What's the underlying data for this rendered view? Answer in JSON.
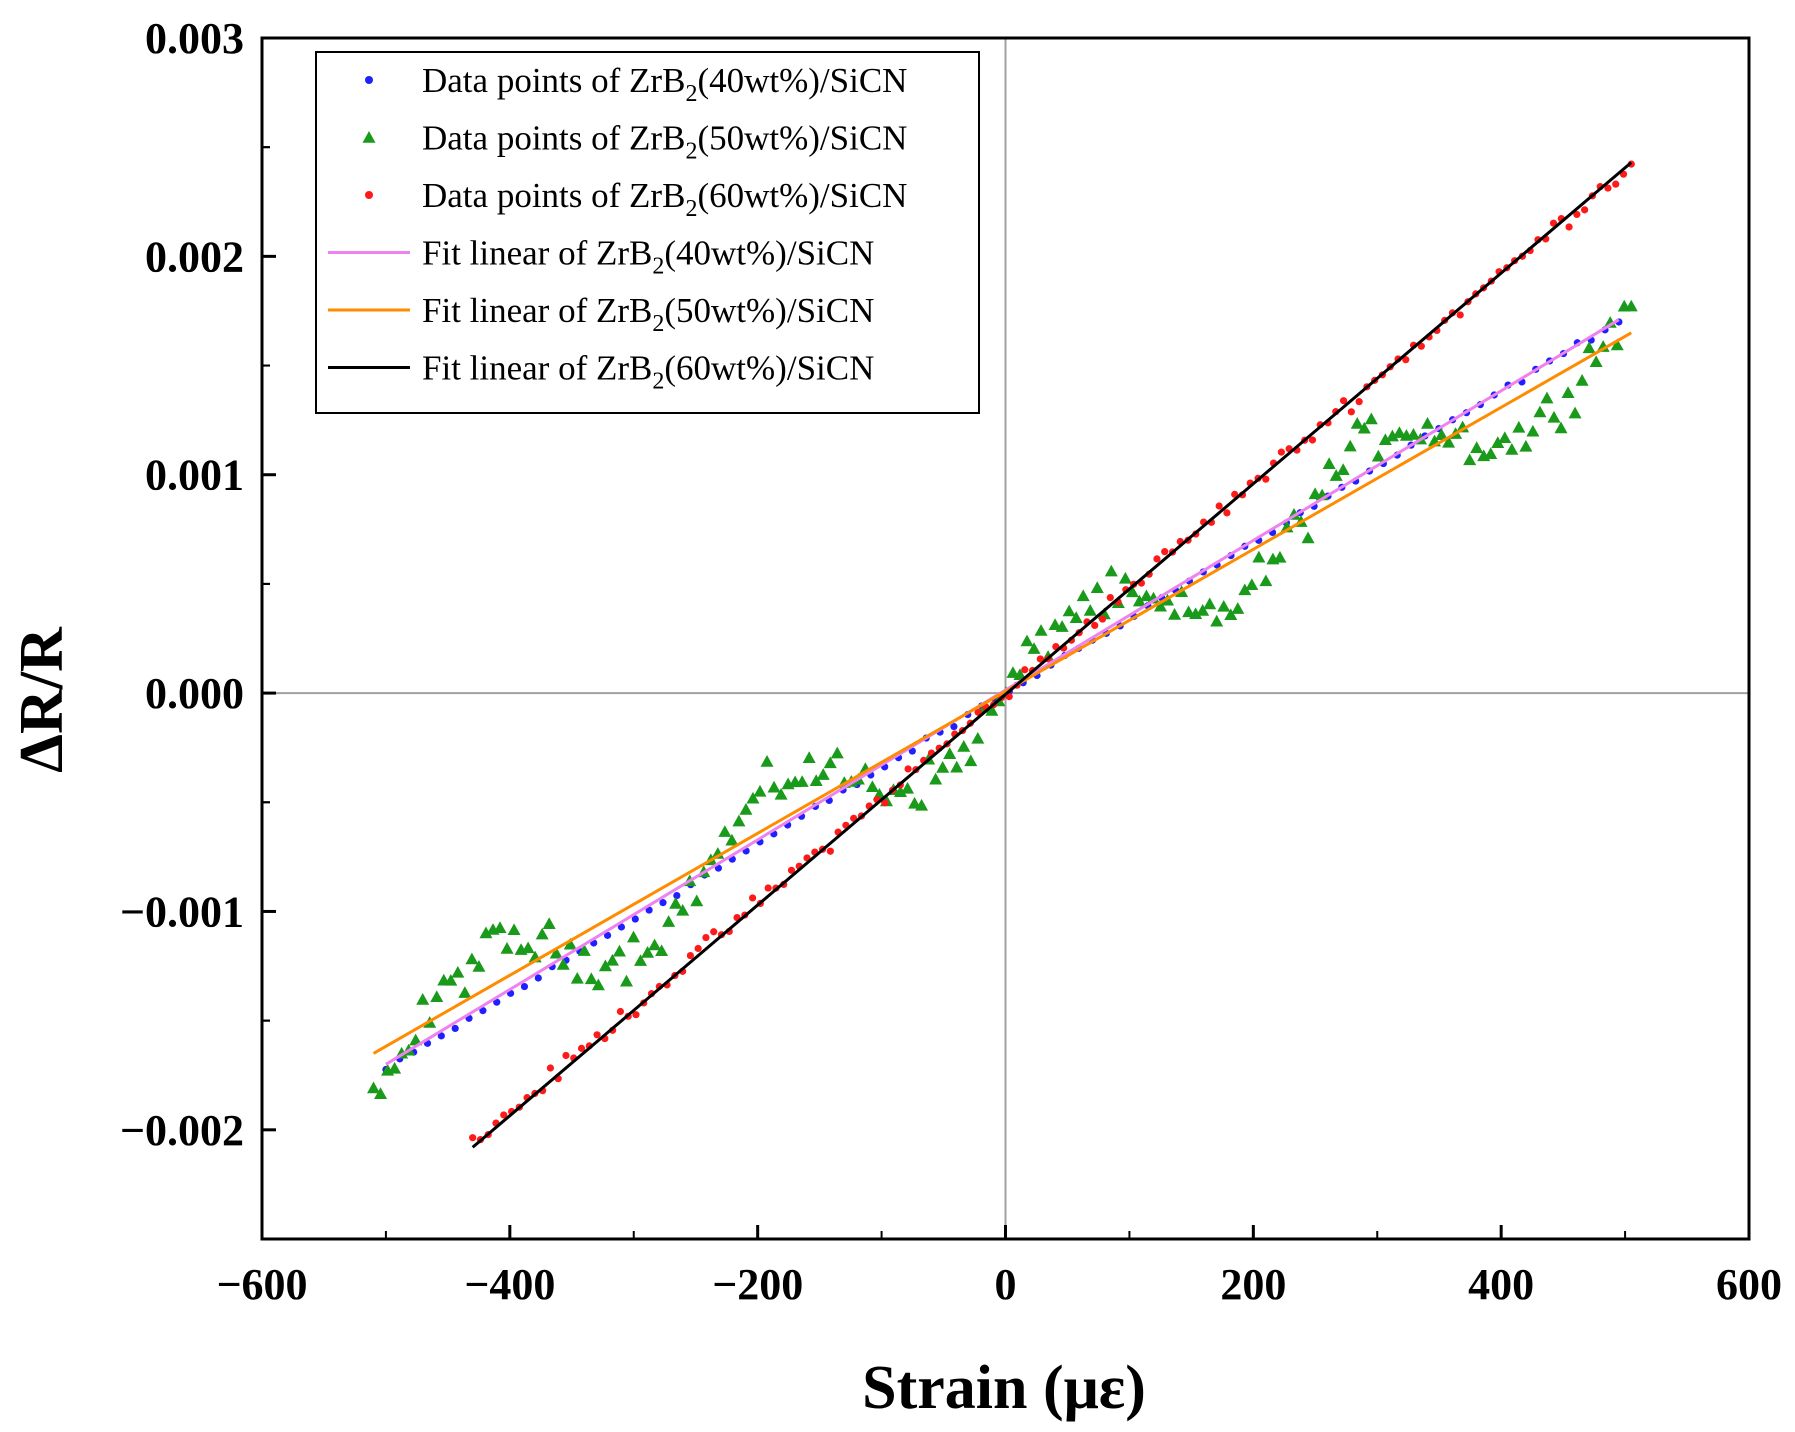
{
  "chart_data": {
    "type": "scatter",
    "title": "",
    "xlabel": "Strain (με)",
    "ylabel": "ΔR/R",
    "xlim": [
      -600,
      600
    ],
    "ylim": [
      -0.0025,
      0.003
    ],
    "x_ticks": [
      -600,
      -400,
      -200,
      0,
      200,
      400,
      600
    ],
    "x_tick_labels": [
      "−600",
      "−400",
      "−200",
      "0",
      "200",
      "400",
      "600"
    ],
    "y_ticks": [
      -0.002,
      -0.001,
      0.0,
      0.001,
      0.002,
      0.003
    ],
    "y_tick_labels": [
      "−0.002",
      "−0.001",
      "0.000",
      "0.001",
      "0.002",
      "0.003"
    ],
    "zero_lines": true,
    "legend_position": "top-left",
    "series": [
      {
        "name": "Data points of ZrB2(40wt%)/SiCN",
        "legend_prefix": "Data points of ZrB",
        "legend_sub": "2",
        "legend_suffix": "(40wt%)/SiCN",
        "kind": "scatter",
        "marker": "circle",
        "color": "#1f1fff",
        "x_start": -500,
        "x_end": 495,
        "n": 90,
        "slope": 3.45e-06,
        "intercept": 0.0,
        "noise": 2e-05
      },
      {
        "name": "Data points of ZrB2(50wt%)/SiCN",
        "legend_prefix": "Data points of ZrB",
        "legend_sub": "2",
        "legend_suffix": "(50wt%)/SiCN",
        "kind": "scatter",
        "marker": "triangle",
        "color": "#1a9a1a",
        "x_start": -510,
        "x_end": 505,
        "n": 180,
        "slope": 3.3e-06,
        "intercept": 0.0,
        "noise": 0.00028
      },
      {
        "name": "Data points of ZrB2(60wt%)/SiCN",
        "legend_prefix": "Data points of ZrB",
        "legend_sub": "2",
        "legend_suffix": "(60wt%)/SiCN",
        "kind": "scatter",
        "marker": "circle",
        "color": "#ff1a1a",
        "x_start": -430,
        "x_end": 505,
        "n": 150,
        "slope": 4.8e-06,
        "intercept": 0.0,
        "noise": 6e-05
      },
      {
        "name": "Fit linear of ZrB2(40wt%)/SiCN",
        "legend_prefix": "Fit linear of ZrB",
        "legend_sub": "2",
        "legend_suffix": "(40wt%)/SiCN",
        "kind": "line",
        "color": "#ee82ee",
        "x": [
          -500,
          495
        ],
        "y": [
          -0.0017,
          0.00171
        ]
      },
      {
        "name": "Fit linear of ZrB2(50wt%)/SiCN",
        "legend_prefix": "Fit linear of ZrB",
        "legend_sub": "2",
        "legend_suffix": "(50wt%)/SiCN",
        "kind": "line",
        "color": "#ff8c00",
        "x": [
          -510,
          505
        ],
        "y": [
          -0.00165,
          0.00165
        ]
      },
      {
        "name": "Fit linear of ZrB2(60wt%)/SiCN",
        "legend_prefix": "Fit linear of ZrB",
        "legend_sub": "2",
        "legend_suffix": "(60wt%)/SiCN",
        "kind": "line",
        "color": "#000000",
        "x": [
          -430,
          505
        ],
        "y": [
          -0.00208,
          0.00243
        ]
      }
    ]
  }
}
